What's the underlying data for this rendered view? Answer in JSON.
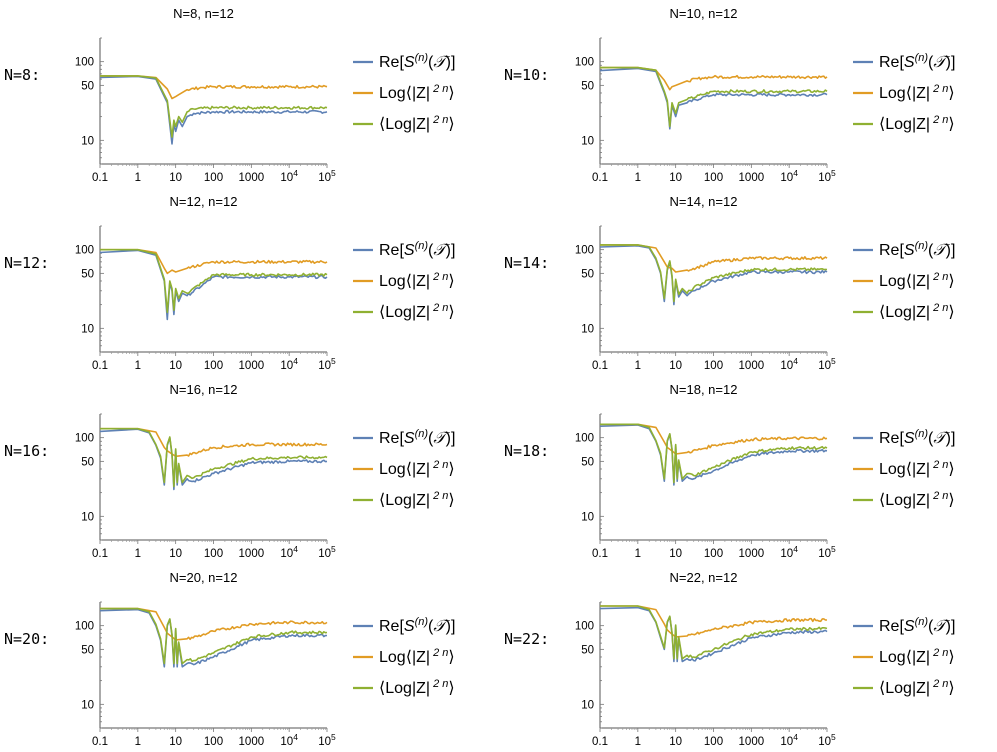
{
  "legend_entries": [
    {
      "id": "re",
      "label": "Re[S^(n)(T)]",
      "color": "#5E81B5"
    },
    {
      "id": "log_mean",
      "label": "Log⟨|Z|^2n⟩",
      "color": "#E19C24"
    },
    {
      "id": "mean_log",
      "label": "⟨Log|Z|^2n⟩",
      "color": "#8FB032"
    }
  ],
  "chart_data": [
    {
      "type": "line",
      "row_label": "N=8:",
      "title": "N=8, n=12",
      "x_scale": "log",
      "y_scale": "log",
      "xlim": [
        0.1,
        100000
      ],
      "ylim": [
        5,
        200
      ],
      "x_ticks": [
        "0.1",
        "1",
        "10",
        "100",
        "1000",
        "10^4",
        "10^5"
      ],
      "y_ticks": [
        "10",
        "50",
        "100"
      ],
      "series": [
        {
          "name": "Re[S^(n)(T)]",
          "x": [
            0.1,
            1,
            3,
            6,
            8,
            9,
            10,
            12,
            15,
            20,
            30,
            100,
            1000,
            10000,
            100000
          ],
          "y": [
            63,
            65,
            60,
            30,
            9,
            16,
            13,
            18,
            15,
            20,
            22,
            23,
            23,
            23,
            23
          ]
        },
        {
          "name": "Log⟨|Z|^2n⟩",
          "x": [
            0.1,
            1,
            3,
            6,
            8,
            10,
            12,
            20,
            50,
            100,
            1000,
            10000,
            100000
          ],
          "y": [
            66,
            66,
            63,
            45,
            34,
            36,
            38,
            44,
            47,
            48,
            48,
            48,
            48
          ]
        },
        {
          "name": "⟨Log|Z|^2n⟩",
          "x": [
            0.1,
            1,
            3,
            6,
            8,
            9,
            10,
            12,
            15,
            20,
            30,
            100,
            1000,
            10000,
            100000
          ],
          "y": [
            66,
            66,
            62,
            32,
            11,
            18,
            15,
            20,
            17,
            23,
            25,
            26,
            26,
            26,
            26
          ]
        }
      ]
    },
    {
      "type": "line",
      "row_label": "N=10:",
      "title": "N=10, n=12",
      "x_scale": "log",
      "y_scale": "log",
      "xlim": [
        0.1,
        100000
      ],
      "ylim": [
        5,
        200
      ],
      "x_ticks": [
        "0.1",
        "1",
        "10",
        "100",
        "1000",
        "10^4",
        "10^5"
      ],
      "y_ticks": [
        "10",
        "50",
        "100"
      ],
      "series": [
        {
          "name": "Re[S^(n)(T)]",
          "x": [
            0.1,
            1,
            3,
            5,
            6,
            7,
            8,
            10,
            12,
            20,
            50,
            100,
            1000,
            10000,
            100000
          ],
          "y": [
            77,
            82,
            75,
            40,
            30,
            14,
            28,
            20,
            28,
            30,
            35,
            38,
            38,
            38,
            38
          ]
        },
        {
          "name": "Log⟨|Z|^2n⟩",
          "x": [
            0.1,
            1,
            3,
            5,
            7,
            8,
            10,
            20,
            50,
            100,
            1000,
            10000,
            100000
          ],
          "y": [
            84,
            84,
            78,
            58,
            44,
            48,
            50,
            57,
            62,
            64,
            64,
            64,
            64
          ]
        },
        {
          "name": "⟨Log|Z|^2n⟩",
          "x": [
            0.1,
            1,
            3,
            5,
            6,
            7,
            8,
            10,
            12,
            20,
            50,
            100,
            1000,
            10000,
            100000
          ],
          "y": [
            84,
            84,
            78,
            42,
            32,
            15,
            30,
            22,
            30,
            33,
            38,
            42,
            42,
            42,
            42
          ]
        }
      ]
    },
    {
      "type": "line",
      "row_label": "N=12:",
      "title": "N=12, n=12",
      "x_scale": "log",
      "y_scale": "log",
      "xlim": [
        0.1,
        100000
      ],
      "ylim": [
        5,
        200
      ],
      "x_ticks": [
        "0.1",
        "1",
        "10",
        "100",
        "1000",
        "10^4",
        "10^5"
      ],
      "y_ticks": [
        "10",
        "50",
        "100"
      ],
      "series": [
        {
          "name": "Re[S^(n)(T)]",
          "x": [
            0.1,
            1,
            3,
            5,
            6,
            7,
            8,
            9,
            10,
            12,
            15,
            20,
            50,
            100,
            1000,
            10000,
            100000
          ],
          "y": [
            92,
            98,
            85,
            40,
            13,
            38,
            30,
            15,
            30,
            22,
            28,
            26,
            35,
            45,
            45,
            45,
            45
          ]
        },
        {
          "name": "Log⟨|Z|^2n⟩",
          "x": [
            0.1,
            1,
            3,
            5,
            6,
            8,
            10,
            20,
            50,
            100,
            1000,
            10000,
            100000
          ],
          "y": [
            100,
            100,
            92,
            58,
            50,
            55,
            52,
            58,
            65,
            70,
            70,
            70,
            70
          ]
        },
        {
          "name": "⟨Log|Z|^2n⟩",
          "x": [
            0.1,
            1,
            3,
            5,
            6,
            7,
            8,
            9,
            10,
            12,
            15,
            20,
            50,
            100,
            1000,
            10000,
            100000
          ],
          "y": [
            100,
            100,
            88,
            42,
            16,
            40,
            32,
            17,
            32,
            24,
            30,
            28,
            38,
            48,
            48,
            48,
            48
          ]
        }
      ]
    },
    {
      "type": "line",
      "row_label": "N=14:",
      "title": "N=14, n=12",
      "x_scale": "log",
      "y_scale": "log",
      "xlim": [
        0.1,
        100000
      ],
      "ylim": [
        5,
        200
      ],
      "x_ticks": [
        "0.1",
        "1",
        "10",
        "100",
        "1000",
        "10^4",
        "10^5"
      ],
      "y_ticks": [
        "10",
        "50",
        "100"
      ],
      "series": [
        {
          "name": "Re[S^(n)(T)]",
          "x": [
            0.1,
            1,
            2,
            3,
            4,
            5,
            6,
            7,
            8,
            9,
            10,
            12,
            15,
            20,
            30,
            100,
            1000,
            10000,
            100000
          ],
          "y": [
            108,
            112,
            105,
            75,
            50,
            22,
            55,
            70,
            45,
            20,
            40,
            25,
            30,
            26,
            30,
            40,
            52,
            52,
            52
          ]
        },
        {
          "name": "Log⟨|Z|^2n⟩",
          "x": [
            0.1,
            1,
            3,
            5,
            6,
            8,
            10,
            20,
            50,
            100,
            1000,
            10000,
            100000
          ],
          "y": [
            115,
            115,
            105,
            70,
            60,
            58,
            52,
            55,
            62,
            70,
            78,
            78,
            78
          ]
        },
        {
          "name": "⟨Log|Z|^2n⟩",
          "x": [
            0.1,
            1,
            2,
            3,
            4,
            5,
            6,
            7,
            8,
            9,
            10,
            12,
            15,
            20,
            30,
            100,
            1000,
            10000,
            100000
          ],
          "y": [
            115,
            115,
            108,
            78,
            52,
            24,
            57,
            72,
            47,
            22,
            42,
            27,
            32,
            28,
            33,
            44,
            56,
            56,
            56
          ]
        }
      ]
    },
    {
      "type": "line",
      "row_label": "N=16:",
      "title": "N=16, n=12",
      "x_scale": "log",
      "y_scale": "log",
      "xlim": [
        0.1,
        100000
      ],
      "ylim": [
        5,
        200
      ],
      "x_ticks": [
        "0.1",
        "1",
        "10",
        "100",
        "1000",
        "10^4",
        "10^5"
      ],
      "y_ticks": [
        "10",
        "50",
        "100"
      ],
      "series": [
        {
          "name": "Re[S^(n)(T)]",
          "x": [
            0.1,
            1,
            2,
            3,
            4,
            5,
            6,
            7,
            8,
            9,
            10,
            11,
            12,
            15,
            20,
            30,
            100,
            1000,
            10000,
            100000
          ],
          "y": [
            120,
            128,
            115,
            80,
            55,
            25,
            80,
            100,
            60,
            22,
            70,
            25,
            45,
            25,
            30,
            28,
            35,
            48,
            50,
            50
          ]
        },
        {
          "name": "Log⟨|Z|^2n⟩",
          "x": [
            0.1,
            1,
            3,
            5,
            6,
            8,
            10,
            20,
            50,
            100,
            1000,
            10000,
            100000
          ],
          "y": [
            130,
            130,
            118,
            75,
            68,
            62,
            58,
            60,
            68,
            75,
            82,
            82,
            82
          ]
        },
        {
          "name": "⟨Log|Z|^2n⟩",
          "x": [
            0.1,
            1,
            2,
            3,
            4,
            5,
            6,
            7,
            8,
            9,
            10,
            11,
            12,
            15,
            20,
            30,
            100,
            1000,
            10000,
            100000
          ],
          "y": [
            130,
            130,
            118,
            82,
            58,
            27,
            82,
            102,
            62,
            24,
            72,
            27,
            47,
            27,
            33,
            31,
            40,
            54,
            56,
            56
          ]
        }
      ]
    },
    {
      "type": "line",
      "row_label": "N=18:",
      "title": "N=18, n=12",
      "x_scale": "log",
      "y_scale": "log",
      "xlim": [
        0.1,
        100000
      ],
      "ylim": [
        5,
        200
      ],
      "x_ticks": [
        "0.1",
        "1",
        "10",
        "100",
        "1000",
        "10^4",
        "10^5"
      ],
      "y_ticks": [
        "10",
        "50",
        "100"
      ],
      "series": [
        {
          "name": "Re[S^(n)(T)]",
          "x": [
            0.1,
            1,
            2,
            3,
            4,
            5,
            6,
            7,
            8,
            9,
            10,
            11,
            12,
            15,
            20,
            30,
            100,
            1000,
            10000,
            100000
          ],
          "y": [
            140,
            145,
            130,
            90,
            60,
            28,
            90,
            110,
            70,
            25,
            80,
            28,
            50,
            28,
            32,
            30,
            38,
            60,
            68,
            68
          ]
        },
        {
          "name": "Log⟨|Z|^2n⟩",
          "x": [
            0.1,
            1,
            3,
            5,
            6,
            8,
            10,
            20,
            50,
            100,
            1000,
            10000,
            100000
          ],
          "y": [
            148,
            148,
            135,
            88,
            75,
            68,
            62,
            65,
            72,
            80,
            95,
            98,
            98
          ]
        },
        {
          "name": "⟨Log|Z|^2n⟩",
          "x": [
            0.1,
            1,
            2,
            3,
            4,
            5,
            6,
            7,
            8,
            9,
            10,
            11,
            12,
            15,
            20,
            30,
            100,
            1000,
            10000,
            100000
          ],
          "y": [
            148,
            148,
            135,
            92,
            63,
            30,
            92,
            112,
            72,
            27,
            82,
            30,
            52,
            30,
            35,
            33,
            42,
            66,
            74,
            74
          ]
        }
      ]
    },
    {
      "type": "line",
      "row_label": "N=20:",
      "title": "N=20, n=12",
      "x_scale": "log",
      "y_scale": "log",
      "xlim": [
        0.1,
        100000
      ],
      "ylim": [
        5,
        200
      ],
      "x_ticks": [
        "0.1",
        "1",
        "10",
        "100",
        "1000",
        "10^4",
        "10^5"
      ],
      "y_ticks": [
        "10",
        "50",
        "100"
      ],
      "series": [
        {
          "name": "Re[S^(n)(T)]",
          "x": [
            0.1,
            1,
            2,
            3,
            4,
            5,
            6,
            7,
            8,
            9,
            10,
            11,
            12,
            15,
            20,
            30,
            100,
            1000,
            10000,
            100000
          ],
          "y": [
            155,
            160,
            145,
            100,
            65,
            30,
            100,
            120,
            75,
            30,
            90,
            30,
            60,
            30,
            33,
            32,
            40,
            65,
            75,
            75
          ]
        },
        {
          "name": "Log⟨|Z|^2n⟩",
          "x": [
            0.1,
            1,
            3,
            5,
            6,
            8,
            10,
            20,
            50,
            100,
            1000,
            10000,
            100000
          ],
          "y": [
            165,
            165,
            150,
            95,
            80,
            72,
            66,
            68,
            76,
            85,
            105,
            110,
            110
          ]
        },
        {
          "name": "⟨Log|Z|^2n⟩",
          "x": [
            0.1,
            1,
            2,
            3,
            4,
            5,
            6,
            7,
            8,
            9,
            10,
            11,
            12,
            15,
            20,
            30,
            100,
            1000,
            10000,
            100000
          ],
          "y": [
            165,
            165,
            150,
            104,
            68,
            33,
            102,
            122,
            78,
            33,
            92,
            33,
            62,
            33,
            37,
            36,
            45,
            72,
            82,
            82
          ]
        }
      ]
    },
    {
      "type": "line",
      "row_label": "N=22:",
      "title": "N=22, n=12",
      "x_scale": "log",
      "y_scale": "log",
      "xlim": [
        0.1,
        100000
      ],
      "ylim": [
        5,
        200
      ],
      "x_ticks": [
        "0.1",
        "1",
        "10",
        "100",
        "1000",
        "10^4",
        "10^5"
      ],
      "y_ticks": [
        "10",
        "50",
        "100"
      ],
      "series": [
        {
          "name": "Re[S^(n)(T)]",
          "x": [
            0.1,
            1,
            2,
            3,
            4,
            5,
            6,
            7,
            8,
            9,
            10,
            11,
            12,
            15,
            20,
            30,
            100,
            1000,
            10000,
            100000
          ],
          "y": [
            165,
            170,
            155,
            110,
            70,
            50,
            110,
            130,
            80,
            35,
            100,
            35,
            70,
            35,
            38,
            36,
            45,
            70,
            82,
            84
          ]
        },
        {
          "name": "Log⟨|Z|^2n⟩",
          "x": [
            0.1,
            1,
            3,
            5,
            6,
            8,
            10,
            20,
            50,
            100,
            1000,
            10000,
            100000
          ],
          "y": [
            178,
            178,
            160,
            105,
            88,
            78,
            72,
            74,
            82,
            90,
            110,
            118,
            118
          ]
        },
        {
          "name": "⟨Log|Z|^2n⟩",
          "x": [
            0.1,
            1,
            2,
            3,
            4,
            5,
            6,
            7,
            8,
            9,
            10,
            11,
            12,
            15,
            20,
            30,
            100,
            1000,
            10000,
            100000
          ],
          "y": [
            178,
            178,
            160,
            112,
            73,
            52,
            112,
            132,
            82,
            38,
            102,
            38,
            72,
            38,
            42,
            40,
            50,
            78,
            90,
            92
          ]
        }
      ]
    }
  ]
}
